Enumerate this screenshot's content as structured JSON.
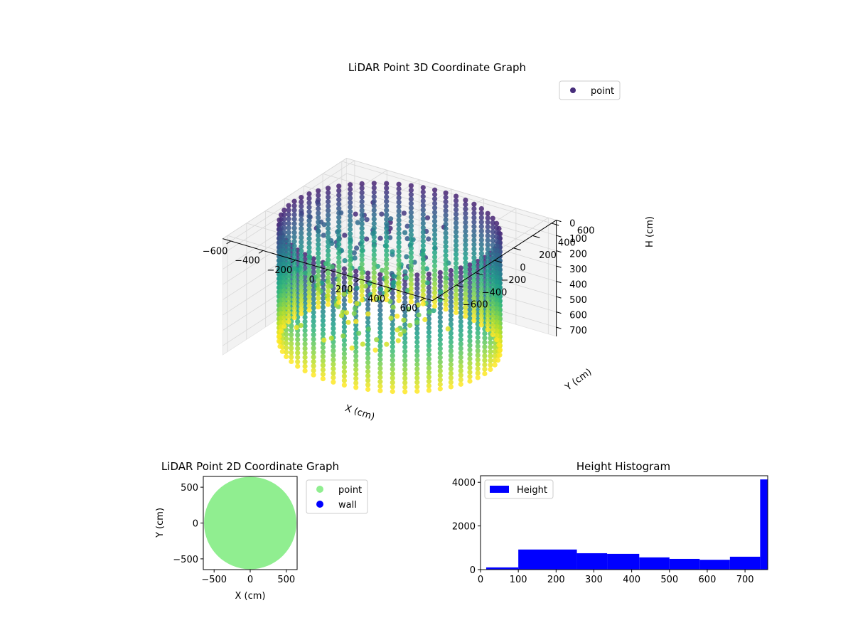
{
  "figure": {
    "background": "#ffffff"
  },
  "chart_data": [
    {
      "type": "scatter",
      "projection": "3d",
      "title": "LiDAR Point 3D Coordinate Graph",
      "xlabel": "X (cm)",
      "ylabel": "Y (cm)",
      "zlabel": "H (cm)",
      "xlim": [
        -650,
        650
      ],
      "ylim": [
        -650,
        650
      ],
      "zlim": [
        760,
        0
      ],
      "z_inverted": true,
      "x_ticks": [
        -600,
        -400,
        -200,
        0,
        200,
        400,
        600
      ],
      "y_ticks": [
        -600,
        -400,
        -200,
        0,
        200,
        400,
        600
      ],
      "z_ticks": [
        0,
        100,
        200,
        300,
        400,
        500,
        600,
        700
      ],
      "grid": true,
      "colormap": "viridis",
      "legend": {
        "placement": "top-right",
        "entries": [
          {
            "label": "point",
            "color": "#472d7b"
          }
        ]
      },
      "series": [
        {
          "name": "point",
          "shape": "cylindrical wall of vertical point columns",
          "radius": 590,
          "height_range": [
            0,
            760
          ],
          "points": [
            [
              590,
              0,
              0
            ],
            [
              0,
              590,
              0
            ],
            [
              -590,
              0,
              0
            ],
            [
              0,
              -590,
              0
            ],
            [
              590,
              0,
              760
            ],
            [
              0,
              590,
              760
            ],
            [
              -590,
              0,
              760
            ],
            [
              0,
              -590,
              760
            ]
          ]
        }
      ]
    },
    {
      "type": "scatter",
      "title": "LiDAR Point 2D Coordinate Graph",
      "xlabel": "X (cm)",
      "ylabel": "Y (cm)",
      "xlim": [
        -650,
        650
      ],
      "ylim": [
        -650,
        650
      ],
      "x_ticks": [
        -500,
        0,
        500
      ],
      "y_ticks": [
        -500,
        0,
        500
      ],
      "legend": {
        "placement": "outside-right"
      },
      "series": [
        {
          "name": "point",
          "color": "#90ee90",
          "shape": "filled disc",
          "radius": 640
        },
        {
          "name": "wall",
          "color": "#0000ff",
          "points": []
        }
      ]
    },
    {
      "type": "bar",
      "subtype": "histogram",
      "title": "Height Histogram",
      "xlim": [
        0,
        760
      ],
      "ylim": [
        0,
        4300
      ],
      "x_ticks": [
        0,
        100,
        200,
        300,
        400,
        500,
        600,
        700
      ],
      "y_ticks": [
        0,
        2000,
        4000
      ],
      "legend": {
        "placement": "top-left",
        "entries": [
          {
            "label": "Height",
            "color": "#0000ff"
          }
        ]
      },
      "color": "#0000ff",
      "bins": [
        {
          "start": 15,
          "end": 100,
          "count": 100
        },
        {
          "start": 100,
          "end": 255,
          "count": 920
        },
        {
          "start": 255,
          "end": 335,
          "count": 750
        },
        {
          "start": 335,
          "end": 420,
          "count": 720
        },
        {
          "start": 420,
          "end": 500,
          "count": 560
        },
        {
          "start": 500,
          "end": 580,
          "count": 490
        },
        {
          "start": 580,
          "end": 660,
          "count": 450
        },
        {
          "start": 660,
          "end": 740,
          "count": 590
        },
        {
          "start": 740,
          "end": 760,
          "count": 4130
        }
      ]
    }
  ]
}
